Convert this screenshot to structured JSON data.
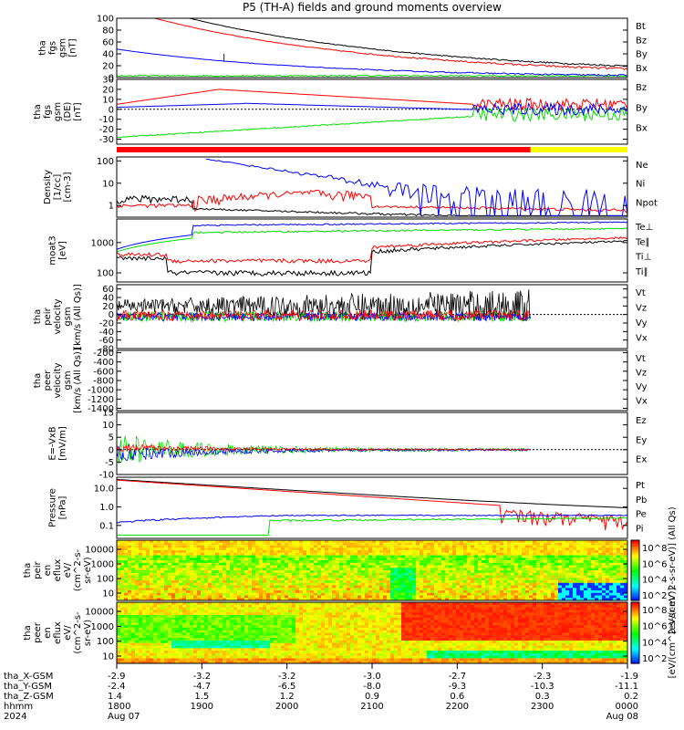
{
  "title": "P5 (TH-A) fields and ground moments overview",
  "colors": {
    "black": "#000000",
    "red": "#ff0000",
    "green": "#00dd00",
    "blue": "#0000ff",
    "yellow": "#ffff00"
  },
  "chart_data": [
    {
      "type": "line",
      "id": "p1",
      "ylabel": [
        "tha",
        "fgs",
        "gsm",
        "[nT]"
      ],
      "ylim": [
        0,
        100
      ],
      "yticks": [
        "100",
        "80",
        "60",
        "40",
        "20",
        "0"
      ],
      "series": [
        {
          "name": "Bt",
          "color": "black"
        },
        {
          "name": "Bz",
          "color": "red"
        },
        {
          "name": "By",
          "color": "green"
        },
        {
          "name": "Bx",
          "color": "blue"
        }
      ]
    },
    {
      "type": "line",
      "id": "p2",
      "ylabel": [
        "tha",
        "fgs",
        "gsm",
        "(DE)",
        "[nT]"
      ],
      "ylim": [
        -35,
        30
      ],
      "yticks": [
        "30",
        "20",
        "10",
        "0",
        "-10",
        "-20",
        "-30"
      ],
      "series": [
        {
          "name": "Bz",
          "color": "red"
        },
        {
          "name": "By",
          "color": "green"
        },
        {
          "name": "Bx",
          "color": "blue"
        }
      ]
    },
    {
      "type": "line",
      "id": "p3",
      "ylabel": [
        "Density",
        "[1/cc]",
        "[cm-3]"
      ],
      "ylim": [
        0.3,
        150
      ],
      "scale": "log",
      "yticks": [
        "100",
        "10",
        "1"
      ],
      "series": [
        {
          "name": "Ne",
          "color": "red"
        },
        {
          "name": "Ni",
          "color": "black"
        },
        {
          "name": "Npot",
          "color": "blue"
        }
      ]
    },
    {
      "type": "line",
      "id": "p4",
      "ylabel": [
        "moat3",
        "[eV]"
      ],
      "ylim": [
        50,
        6000
      ],
      "scale": "log",
      "yticks": [
        "1000",
        "100"
      ],
      "series": [
        {
          "name": "Te⊥",
          "color": "red"
        },
        {
          "name": "Te∥",
          "color": "black"
        },
        {
          "name": "Ti⊥",
          "color": "blue"
        },
        {
          "name": "Ti∥",
          "color": "green"
        }
      ]
    },
    {
      "type": "line",
      "id": "p5",
      "ylabel": [
        "tha",
        "peir",
        "velocity",
        "gsm",
        "[km/s (All Qs)]"
      ],
      "ylim": [
        -80,
        70
      ],
      "yticks": [
        "60",
        "40",
        "20",
        "0",
        "-20",
        "-40",
        "-60",
        "-80"
      ],
      "series": [
        {
          "name": "Vt",
          "color": "black"
        },
        {
          "name": "Vz",
          "color": "red"
        },
        {
          "name": "Vy",
          "color": "green"
        },
        {
          "name": "Vx",
          "color": "blue"
        }
      ]
    },
    {
      "type": "line",
      "id": "p6",
      "ylabel": [
        "tha",
        "peer",
        "velocity",
        "gsm",
        "[km/s (All Qs)]"
      ],
      "ylim": [
        -1450,
        -150
      ],
      "yticks": [
        "-200",
        "-400",
        "-600",
        "-800",
        "-1000",
        "-1200",
        "-1400"
      ],
      "series": [
        {
          "name": "Vt",
          "color": "black"
        },
        {
          "name": "Vz",
          "color": "red"
        },
        {
          "name": "Vy",
          "color": "green"
        },
        {
          "name": "Vx",
          "color": "blue"
        }
      ]
    },
    {
      "type": "line",
      "id": "p7",
      "ylabel": [
        "E=-VxB",
        "[mV/m]"
      ],
      "ylim": [
        -10,
        15
      ],
      "yticks": [
        "15",
        "10",
        "5",
        "0",
        "-5",
        "-10"
      ],
      "series": [
        {
          "name": "Ez",
          "color": "red"
        },
        {
          "name": "Ey",
          "color": "green"
        },
        {
          "name": "Ex",
          "color": "blue"
        }
      ]
    },
    {
      "type": "line",
      "id": "p8",
      "ylabel": [
        "Pressure",
        "[nPa]"
      ],
      "ylim": [
        0.02,
        40
      ],
      "scale": "log",
      "yticks": [
        "10.0",
        "1.0",
        "0.1"
      ],
      "series": [
        {
          "name": "Pt",
          "color": "black"
        },
        {
          "name": "Pb",
          "color": "red"
        },
        {
          "name": "Pe",
          "color": "green"
        },
        {
          "name": "Pi",
          "color": "blue"
        }
      ]
    },
    {
      "type": "heatmap",
      "id": "p9",
      "ylabel": [
        "tha",
        "peir",
        "en",
        "eflux",
        "eV/",
        "(cm^2-s-",
        "sr-eV)"
      ],
      "yticks": [
        "10000",
        "1000",
        "100",
        "10"
      ],
      "cbar_label": "[eV/(cm^2-s-sr-eV)] (All Qs)",
      "cbar_ticks": [
        "10^8",
        "10^6",
        "10^4",
        "10^2"
      ]
    },
    {
      "type": "heatmap",
      "id": "p10",
      "ylabel": [
        "tha",
        "peer",
        "en",
        "eflux",
        "eV/",
        "(cm^2-s-",
        "sr-eV)"
      ],
      "yticks": [
        "10000",
        "1000",
        "100",
        "10"
      ],
      "cbar_label": "[eV/(cm^2-s-sr-eV)]",
      "cbar_ticks": [
        "10^8",
        "10^6",
        "10^4",
        "10^2"
      ]
    }
  ],
  "xaxis": {
    "row_labels": [
      "tha_X-GSM",
      "tha_Y-GSM",
      "tha_Z-GSM",
      "hhmm",
      "2024"
    ],
    "columns": [
      [
        "-2.9",
        "-2.4",
        "1.4",
        "1800",
        "Aug 07"
      ],
      [
        "-3.2",
        "-4.7",
        "1.5",
        "1900",
        ""
      ],
      [
        "-3.2",
        "-6.5",
        "1.2",
        "2000",
        ""
      ],
      [
        "-3.0",
        "-8.0",
        "0.9",
        "2100",
        ""
      ],
      [
        "-2.7",
        "-9.3",
        "0.6",
        "2200",
        ""
      ],
      [
        "-2.3",
        "-10.3",
        "0.3",
        "2300",
        ""
      ],
      [
        "-1.9",
        "-11.1",
        "0.2",
        "0000",
        "Aug 08"
      ]
    ]
  }
}
